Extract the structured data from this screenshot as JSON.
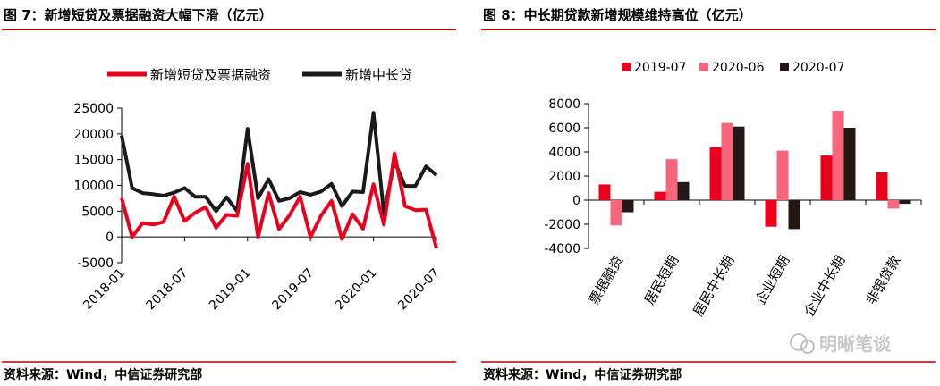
{
  "left": {
    "title": "图 7：新增短贷及票据融资大幅下滑（亿元）",
    "source": "资料来源：Wind，中信证券研究部"
  },
  "right": {
    "title": "图 8：中长期贷款新增规模维持高位（亿元）",
    "source": "资料来源：Wind，中信证券研究部"
  },
  "watermark": "明晰笔谈",
  "colors": {
    "border": "#c00000",
    "red_line": "#e8001c",
    "dark_line": "#1a1a1a",
    "bar_2019": "#e8001c",
    "bar_2020_06": "#f7667c",
    "bar_2020_07": "#231815"
  },
  "chart_data": [
    {
      "type": "line",
      "x": [
        "2018-01",
        "2018-02",
        "2018-03",
        "2018-04",
        "2018-05",
        "2018-06",
        "2018-07",
        "2018-08",
        "2018-09",
        "2018-10",
        "2018-11",
        "2018-12",
        "2019-01",
        "2019-02",
        "2019-03",
        "2019-04",
        "2019-05",
        "2019-06",
        "2019-07",
        "2019-08",
        "2019-09",
        "2019-10",
        "2019-11",
        "2019-12",
        "2020-01",
        "2020-02",
        "2020-03",
        "2020-04",
        "2020-05",
        "2020-06",
        "2020-07"
      ],
      "xticks": [
        "2018-01",
        "2018-07",
        "2019-01",
        "2019-07",
        "2020-01",
        "2020-07"
      ],
      "ylim": [
        -5000,
        25000
      ],
      "yticks": [
        -5000,
        0,
        5000,
        10000,
        15000,
        20000,
        25000
      ],
      "legend_position": "top",
      "series": [
        {
          "name": "新增短贷及票据融资",
          "color": "#e8001c",
          "values": [
            7500,
            0,
            2700,
            2400,
            2900,
            7800,
            3100,
            4700,
            5800,
            1800,
            4300,
            4100,
            14200,
            0,
            8500,
            1500,
            4200,
            7800,
            0,
            4100,
            7000,
            -400,
            4400,
            1600,
            10200,
            2400,
            16200,
            6000,
            5200,
            5300,
            -2200
          ]
        },
        {
          "name": "新增中长贷",
          "color": "#1a1a1a",
          "values": [
            19700,
            9500,
            8500,
            8300,
            8000,
            8600,
            9500,
            7800,
            7800,
            5000,
            7700,
            5000,
            21000,
            7500,
            11200,
            7000,
            7500,
            8700,
            8200,
            8800,
            10300,
            6000,
            8800,
            8700,
            24100,
            4500,
            14700,
            9900,
            9900,
            13700,
            12000
          ]
        }
      ]
    },
    {
      "type": "bar",
      "categories": [
        "票据融资",
        "居民短期",
        "居民中长期",
        "企业短期",
        "企业中长期",
        "非银贷款"
      ],
      "ylim": [
        -4000,
        8000
      ],
      "yticks": [
        -4000,
        -2000,
        0,
        2000,
        4000,
        6000,
        8000
      ],
      "legend_position": "top",
      "series": [
        {
          "name": "2019-07",
          "color": "#e8001c",
          "values": [
            1300,
            700,
            4400,
            -2200,
            3700,
            2300
          ]
        },
        {
          "name": "2020-06",
          "color": "#f7667c",
          "values": [
            -2100,
            3400,
            6400,
            4100,
            7400,
            -700
          ]
        },
        {
          "name": "2020-07",
          "color": "#231815",
          "values": [
            -1000,
            1500,
            6100,
            -2400,
            6000,
            -300
          ]
        }
      ]
    }
  ]
}
